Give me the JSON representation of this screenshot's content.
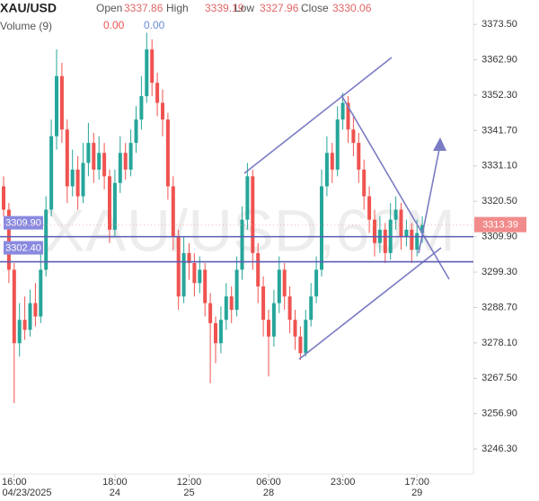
{
  "chart_data": {
    "type": "candlestick",
    "symbol": "XAU/USD",
    "watermark": "XAU/USD,60M",
    "ohlc_header": [
      {
        "label": "Open",
        "value": 3337.86
      },
      {
        "label": "High",
        "value": 3339.19
      },
      {
        "label": "Low",
        "value": 3327.96
      },
      {
        "label": "Close",
        "value": 3330.06
      }
    ],
    "volume_label": "Volume (9)",
    "volume_values": [
      {
        "value": 0,
        "label": "0.00",
        "color": "#ef5350"
      },
      {
        "value": 0,
        "label": "0.00",
        "color": "#6a8fd8"
      }
    ],
    "up_color": "#26a69a",
    "down_color": "#ef5350",
    "categories": [
      null,
      null,
      "16:00",
      null,
      null,
      null,
      null,
      null,
      null,
      null,
      null,
      null,
      null,
      null,
      null,
      null,
      null,
      null,
      null,
      null,
      null,
      "18:00",
      null,
      null,
      null,
      null,
      null,
      null,
      null,
      null,
      null,
      null,
      null,
      null,
      null,
      "12:00",
      null,
      null,
      null,
      null,
      null,
      null,
      null,
      null,
      null,
      null,
      null,
      null,
      null,
      null,
      "06:00",
      null,
      null,
      null,
      null,
      null,
      null,
      null,
      null,
      null,
      null,
      null,
      null,
      null,
      "23:00",
      null,
      null,
      null,
      null,
      null,
      null,
      null,
      null,
      null,
      null,
      null,
      null,
      null,
      "17:00",
      null
    ],
    "date_labels": [
      null,
      null,
      "04/23/2025",
      null,
      null,
      null,
      null,
      null,
      null,
      null,
      null,
      null,
      null,
      null,
      null,
      null,
      null,
      null,
      null,
      null,
      null,
      "24",
      null,
      null,
      null,
      null,
      null,
      null,
      null,
      null,
      null,
      null,
      null,
      null,
      null,
      "25",
      null,
      null,
      null,
      null,
      null,
      null,
      null,
      null,
      null,
      null,
      null,
      null,
      null,
      null,
      "28",
      null,
      null,
      null,
      null,
      null,
      null,
      null,
      null,
      null,
      null,
      null,
      null,
      null,
      null,
      null,
      null,
      null,
      null,
      null,
      null,
      null,
      null,
      null,
      null,
      null,
      null,
      null,
      "29",
      null
    ],
    "open": [
      3325,
      3318,
      3300,
      3278,
      3285,
      3282,
      3290,
      3286,
      3300,
      3318,
      3340,
      3358,
      3342,
      3325,
      3330,
      3322,
      3332,
      3338,
      3330,
      3335,
      3328,
      3312,
      3326,
      3335,
      3330,
      3338,
      3345,
      3352,
      3366,
      3356,
      3350,
      3345,
      3325,
      3310,
      3292,
      3305,
      3302,
      3296,
      3300,
      3290,
      3284,
      3278,
      3285,
      3292,
      3288,
      3300,
      3315,
      3328,
      3305,
      3295,
      3285,
      3280,
      3290,
      3300,
      3292,
      3285,
      3280,
      3275,
      3285,
      3292,
      3300,
      3325,
      3335,
      3330,
      3345,
      3350,
      3342,
      3338,
      3330,
      3322,
      3315,
      3308,
      3312,
      3305,
      3315,
      3318,
      3310,
      3312,
      3306,
      3311
    ],
    "high": [
      3328,
      3320,
      3302,
      3290,
      3292,
      3294,
      3296,
      3305,
      3322,
      3345,
      3366,
      3362,
      3345,
      3336,
      3334,
      3338,
      3344,
      3341,
      3340,
      3338,
      3330,
      3330,
      3340,
      3338,
      3342,
      3349,
      3358,
      3371,
      3369,
      3359,
      3354,
      3347,
      3328,
      3312,
      3310,
      3308,
      3305,
      3304,
      3302,
      3293,
      3286,
      3289,
      3296,
      3295,
      3304,
      3319,
      3332,
      3330,
      3308,
      3298,
      3288,
      3294,
      3304,
      3302,
      3295,
      3288,
      3283,
      3288,
      3296,
      3304,
      3330,
      3340,
      3338,
      3349,
      3353,
      3352,
      3346,
      3341,
      3333,
      3325,
      3318,
      3316,
      3314,
      3320,
      3322,
      3320,
      3315,
      3314,
      3315,
      3316
    ],
    "low": [
      3316,
      3296,
      3260,
      3274,
      3279,
      3280,
      3283,
      3284,
      3298,
      3316,
      3336,
      3338,
      3320,
      3322,
      3318,
      3320,
      3328,
      3326,
      3327,
      3324,
      3308,
      3310,
      3323,
      3327,
      3328,
      3335,
      3342,
      3350,
      3352,
      3346,
      3340,
      3321,
      3306,
      3288,
      3290,
      3297,
      3292,
      3293,
      3286,
      3266,
      3272,
      3275,
      3282,
      3284,
      3286,
      3297,
      3312,
      3300,
      3290,
      3280,
      3268,
      3277,
      3287,
      3288,
      3281,
      3276,
      3273,
      3274,
      3283,
      3290,
      3298,
      3322,
      3326,
      3328,
      3342,
      3338,
      3334,
      3326,
      3318,
      3311,
      3304,
      3305,
      3302,
      3303,
      3312,
      3306,
      3307,
      3302,
      3304,
      3308
    ],
    "close": [
      3318,
      3300,
      3278,
      3285,
      3282,
      3290,
      3286,
      3300,
      3318,
      3340,
      3358,
      3342,
      3325,
      3330,
      3322,
      3332,
      3338,
      3330,
      3335,
      3328,
      3312,
      3326,
      3335,
      3330,
      3338,
      3345,
      3352,
      3366,
      3356,
      3350,
      3345,
      3325,
      3310,
      3292,
      3305,
      3302,
      3296,
      3300,
      3290,
      3284,
      3278,
      3285,
      3292,
      3288,
      3300,
      3315,
      3328,
      3305,
      3295,
      3285,
      3280,
      3290,
      3300,
      3292,
      3285,
      3280,
      3275,
      3285,
      3292,
      3300,
      3325,
      3335,
      3330,
      3345,
      3350,
      3342,
      3338,
      3330,
      3322,
      3315,
      3308,
      3312,
      3305,
      3315,
      3318,
      3310,
      3312,
      3306,
      3311,
      3313.39
    ],
    "ylim": [
      3238.8,
      3380.8
    ],
    "yticks": [
      {
        "value": 3373.5,
        "label": "3373.50"
      },
      {
        "value": 3362.9,
        "label": "3362.90"
      },
      {
        "value": 3352.3,
        "label": "3352.30"
      },
      {
        "value": 3341.7,
        "label": "3341.70"
      },
      {
        "value": 3331.1,
        "label": "3331.10"
      },
      {
        "value": 3320.5,
        "label": "3320.50"
      },
      {
        "value": 3309.9,
        "label": "3309.90"
      },
      {
        "value": 3299.3,
        "label": "3299.30"
      },
      {
        "value": 3288.7,
        "label": "3288.70"
      },
      {
        "value": 3278.1,
        "label": "3278.10"
      },
      {
        "value": 3267.5,
        "label": "3267.50"
      },
      {
        "value": 3256.9,
        "label": "3256.90"
      },
      {
        "value": 3246.3,
        "label": "3246.30"
      }
    ],
    "levels": [
      {
        "value": 3309.9,
        "label": "3309.90"
      },
      {
        "value": 3302.4,
        "label": "3302.40"
      }
    ],
    "level_color": "#5b5bb8",
    "last_price": 3313.39,
    "last_price_color": "#f28b8b",
    "grid": false
  }
}
